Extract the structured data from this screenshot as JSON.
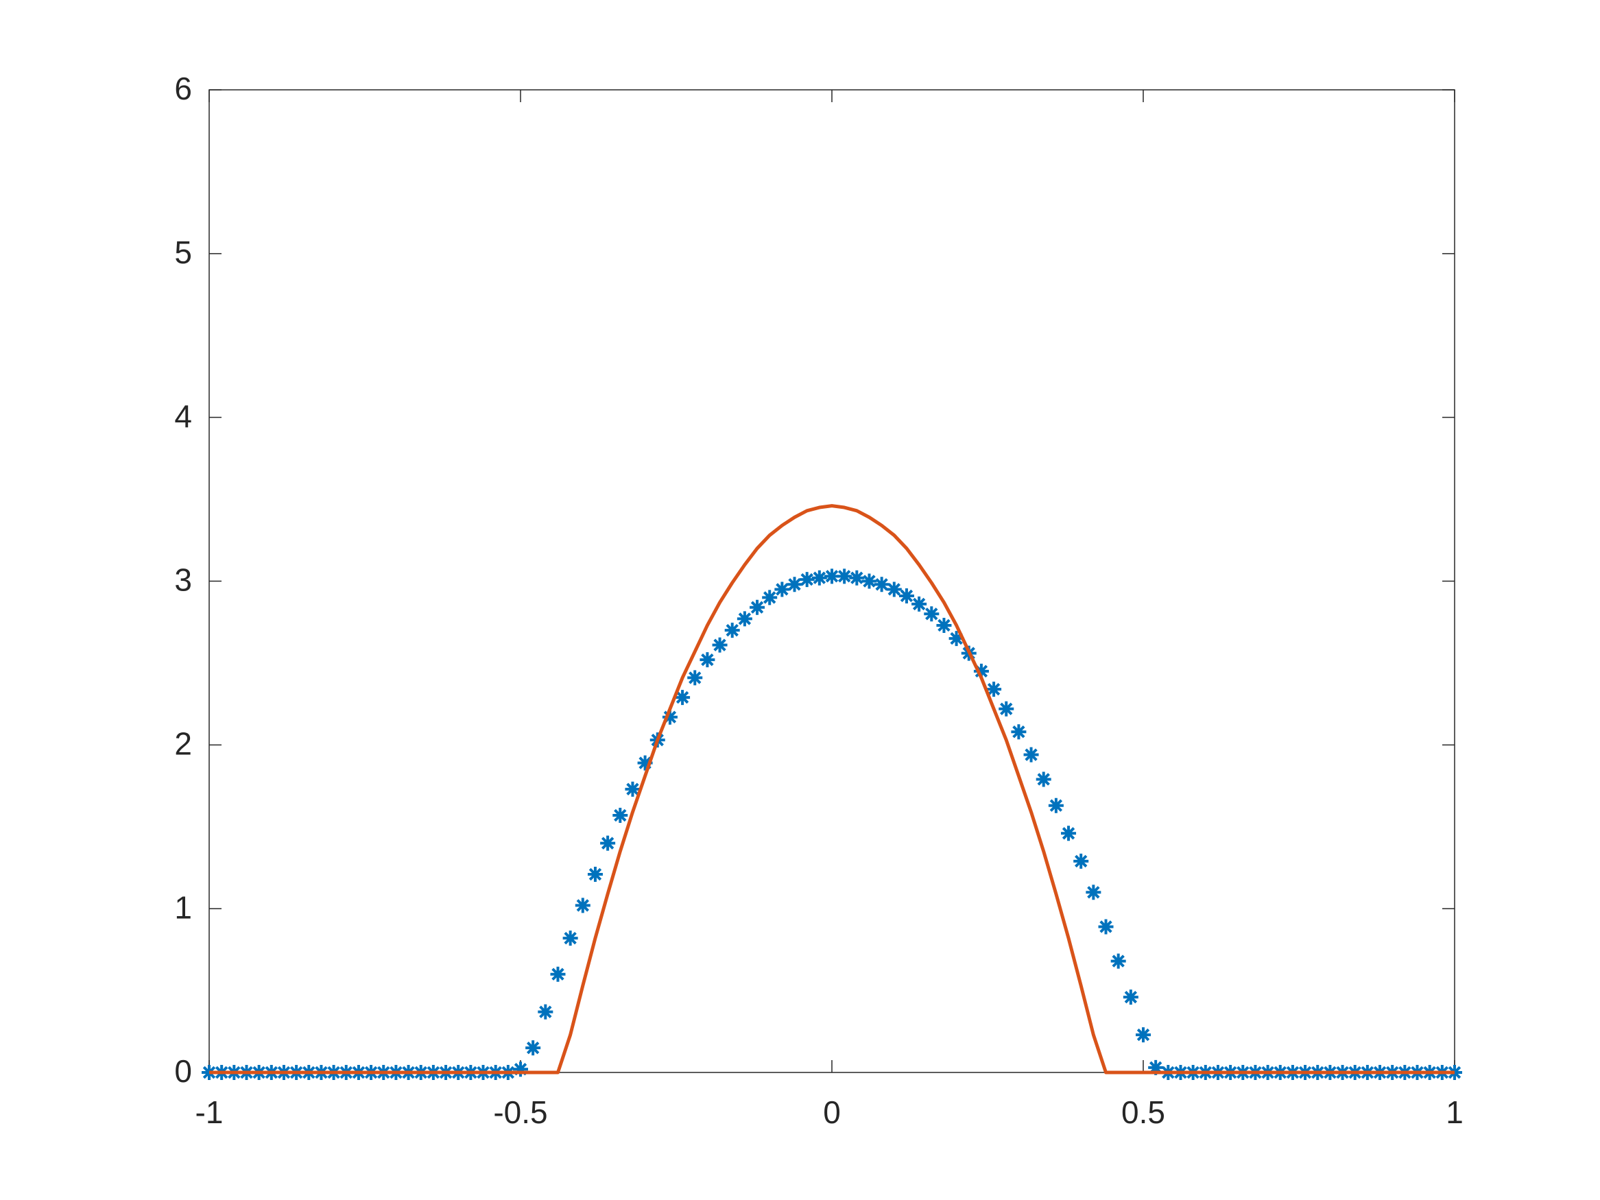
{
  "chart_data": {
    "type": "line",
    "x": [
      -1,
      -0.98,
      -0.96,
      -0.94,
      -0.92,
      -0.9,
      -0.88,
      -0.86,
      -0.84,
      -0.82,
      -0.8,
      -0.78,
      -0.76,
      -0.74,
      -0.72,
      -0.7,
      -0.68,
      -0.66,
      -0.64,
      -0.62,
      -0.6,
      -0.58,
      -0.56,
      -0.54,
      -0.52,
      -0.5,
      -0.48,
      -0.46,
      -0.44,
      -0.42,
      -0.4,
      -0.38,
      -0.36,
      -0.34,
      -0.32,
      -0.3,
      -0.28,
      -0.26,
      -0.24,
      -0.22,
      -0.2,
      -0.18,
      -0.16,
      -0.14,
      -0.12,
      -0.1,
      -0.08,
      -0.06,
      -0.04,
      -0.02,
      0,
      0.02,
      0.04,
      0.06,
      0.08,
      0.1,
      0.12,
      0.14,
      0.16,
      0.18,
      0.2,
      0.22,
      0.24,
      0.26,
      0.28,
      0.3,
      0.32,
      0.34,
      0.36,
      0.38,
      0.4,
      0.42,
      0.44,
      0.46,
      0.48,
      0.5,
      0.52,
      0.54,
      0.56,
      0.58,
      0.6,
      0.62,
      0.64,
      0.66,
      0.68,
      0.7,
      0.72,
      0.74,
      0.76,
      0.78,
      0.8,
      0.82,
      0.84,
      0.86,
      0.88,
      0.9,
      0.92,
      0.94,
      0.96,
      0.98,
      1
    ],
    "series": [
      {
        "marker": "asterisk",
        "color": "#0072bd",
        "values": [
          0,
          0,
          0,
          0,
          0,
          0,
          0,
          0,
          0,
          0,
          0,
          0,
          0,
          0,
          0,
          0,
          0,
          0,
          0,
          0,
          0,
          0,
          0,
          0,
          0,
          0.02,
          0.15,
          0.37,
          0.6,
          0.82,
          1.02,
          1.21,
          1.4,
          1.57,
          1.73,
          1.89,
          2.03,
          2.17,
          2.29,
          2.41,
          2.52,
          2.61,
          2.7,
          2.77,
          2.84,
          2.9,
          2.95,
          2.98,
          3.01,
          3.02,
          3.03,
          3.03,
          3.02,
          3.0,
          2.98,
          2.95,
          2.91,
          2.86,
          2.8,
          2.73,
          2.65,
          2.56,
          2.45,
          2.34,
          2.22,
          2.08,
          1.94,
          1.79,
          1.63,
          1.46,
          1.29,
          1.1,
          0.89,
          0.68,
          0.46,
          0.23,
          0.03,
          0,
          0,
          0,
          0,
          0,
          0,
          0,
          0,
          0,
          0,
          0,
          0,
          0,
          0,
          0,
          0,
          0,
          0,
          0,
          0,
          0,
          0,
          0,
          0
        ]
      },
      {
        "marker": "none",
        "color": "#d95319",
        "values": [
          0,
          0,
          0,
          0,
          0,
          0,
          0,
          0,
          0,
          0,
          0,
          0,
          0,
          0,
          0,
          0,
          0,
          0,
          0,
          0,
          0,
          0,
          0,
          0,
          0,
          0,
          0,
          0,
          0,
          0.23,
          0.53,
          0.82,
          1.09,
          1.35,
          1.59,
          1.81,
          2.03,
          2.22,
          2.41,
          2.57,
          2.73,
          2.87,
          2.99,
          3.1,
          3.2,
          3.28,
          3.34,
          3.39,
          3.43,
          3.45,
          3.46,
          3.45,
          3.43,
          3.39,
          3.34,
          3.28,
          3.2,
          3.1,
          2.99,
          2.87,
          2.73,
          2.57,
          2.41,
          2.22,
          2.03,
          1.81,
          1.59,
          1.35,
          1.09,
          0.82,
          0.53,
          0.23,
          0,
          0,
          0,
          0,
          0,
          0,
          0,
          0,
          0,
          0,
          0,
          0,
          0,
          0,
          0,
          0,
          0,
          0,
          0,
          0,
          0,
          0,
          0,
          0,
          0,
          0,
          0,
          0,
          0
        ]
      }
    ],
    "xlim": [
      -1,
      1
    ],
    "xticks": [
      -1,
      -0.5,
      0,
      0.5,
      1
    ],
    "ylim": [
      0,
      6
    ],
    "yticks": [
      0,
      1,
      2,
      3,
      4,
      5,
      6
    ]
  }
}
